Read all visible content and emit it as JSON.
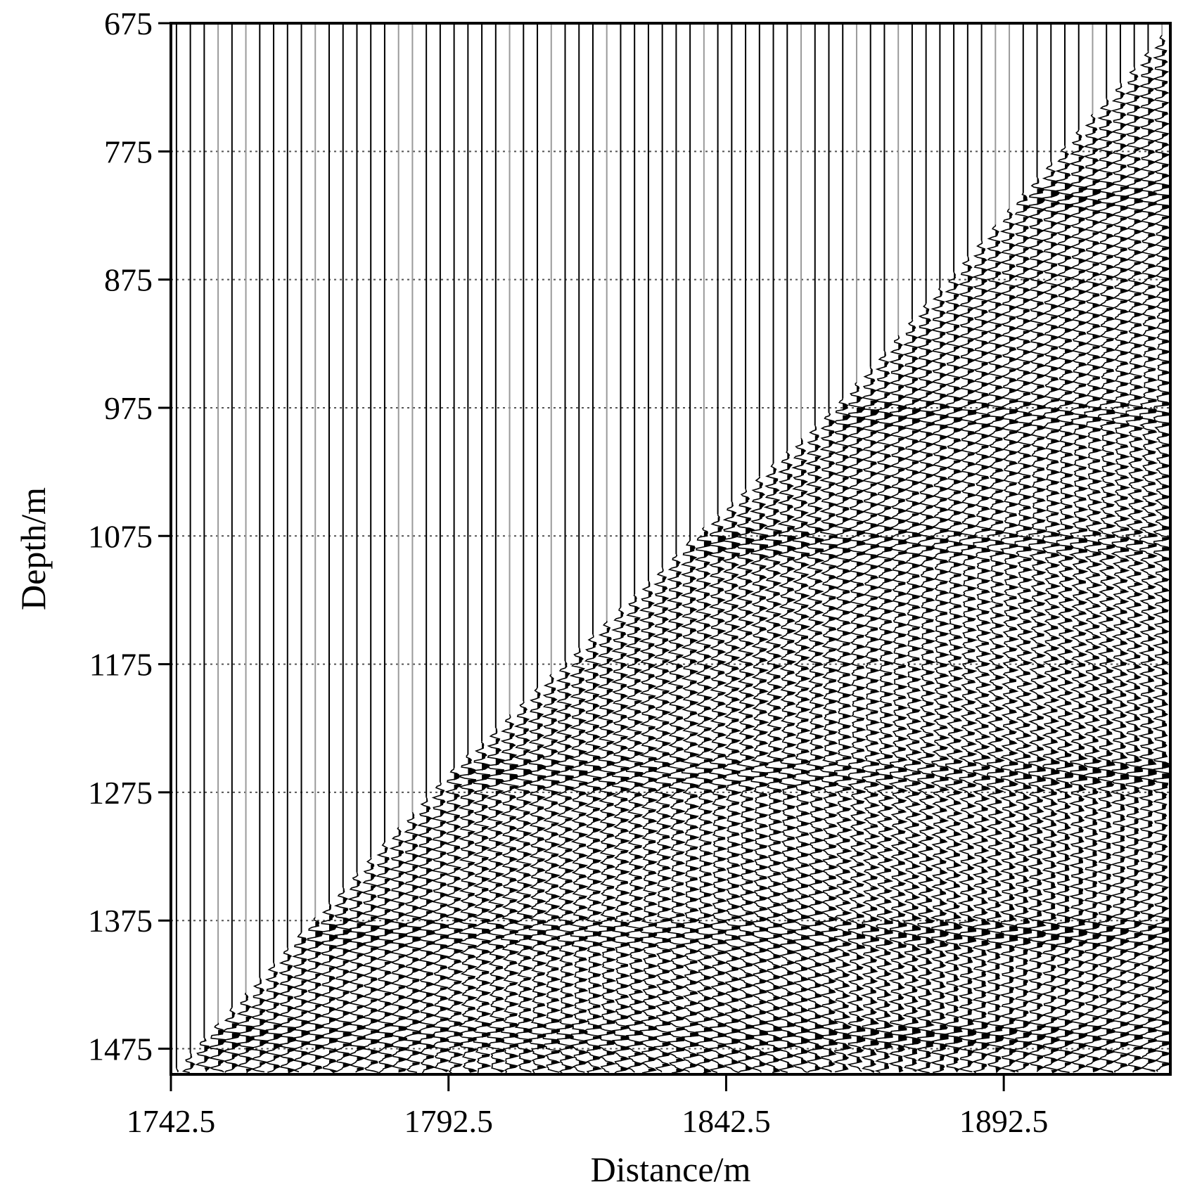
{
  "chart_data": {
    "type": "seismic-wiggle",
    "title": "",
    "xlabel": "Distance/m",
    "ylabel": "Depth/m",
    "xlim": [
      1742.5,
      1922.5
    ],
    "ylim": [
      675,
      1495
    ],
    "y_inverted": true,
    "x_ticks": [
      1742.5,
      1792.5,
      1842.5,
      1892.5
    ],
    "x_tick_labels": [
      "1742.5",
      "1792.5",
      "1842.5",
      "1892.5"
    ],
    "y_ticks": [
      675,
      775,
      875,
      975,
      1075,
      1175,
      1275,
      1375,
      1475
    ],
    "y_tick_labels": [
      "675",
      "775",
      "875",
      "975",
      "1075",
      "1175",
      "1275",
      "1375",
      "1475"
    ],
    "trace_spacing": 2.5,
    "first_arrival_depth": [
      {
        "distance": 1743.5,
        "depth": 1490
      },
      {
        "distance": 1792.5,
        "depth": 1260
      },
      {
        "distance": 1840.0,
        "depth": 1062
      },
      {
        "distance": 1862.0,
        "depth": 975
      },
      {
        "distance": 1922.5,
        "depth": 677
      }
    ],
    "reflector_depths": [
      810,
      980,
      1080,
      1260,
      1385,
      1465
    ],
    "grid": "horizontal dotted at y ticks",
    "colors": {
      "trace": "#000000",
      "grid": "#555555"
    }
  }
}
